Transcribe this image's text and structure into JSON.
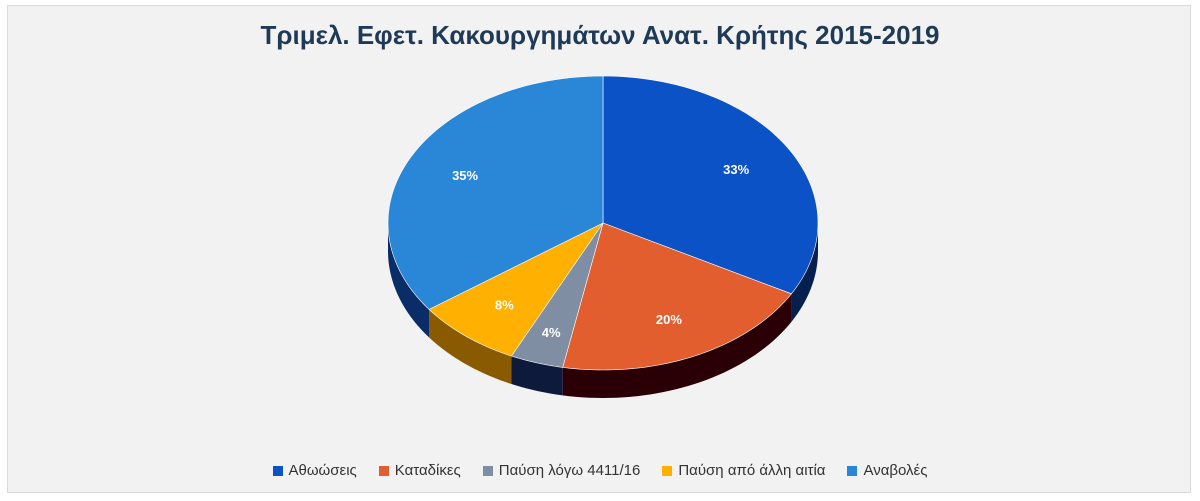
{
  "chart_data": {
    "type": "pie",
    "title": "Τριμελ. Εφετ. Κακουργημάτων Ανατ. Κρήτης 2015-2019",
    "categories": [
      "Αθωώσεις",
      "Καταδίκες",
      "Παύση λόγω 4411/16",
      "Παύση από άλλη αιτία",
      "Αναβολές"
    ],
    "values": [
      33,
      20,
      4,
      8,
      35
    ],
    "labels": [
      "33%",
      "20%",
      "4%",
      "8%",
      "35%"
    ],
    "colors": [
      "#0b52c6",
      "#e35e2f",
      "#7f8ea3",
      "#ffb000",
      "#2a86d6"
    ],
    "side_colors": [
      "#05204e",
      "#2a0006",
      "#0e1a3c",
      "#8a5a00",
      "#0a2d68"
    ],
    "legend_position": "bottom"
  }
}
